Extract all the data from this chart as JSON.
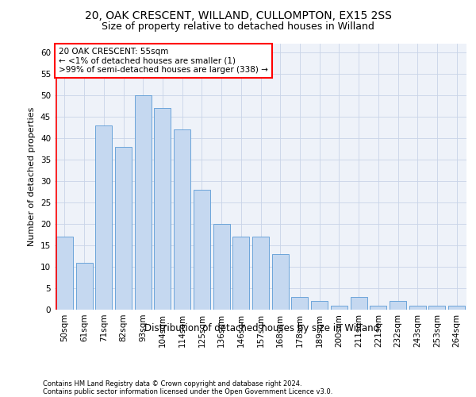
{
  "title1": "20, OAK CRESCENT, WILLAND, CULLOMPTON, EX15 2SS",
  "title2": "Size of property relative to detached houses in Willand",
  "xlabel": "Distribution of detached houses by size in Willand",
  "ylabel": "Number of detached properties",
  "categories": [
    "50sqm",
    "61sqm",
    "71sqm",
    "82sqm",
    "93sqm",
    "104sqm",
    "114sqm",
    "125sqm",
    "136sqm",
    "146sqm",
    "157sqm",
    "168sqm",
    "178sqm",
    "189sqm",
    "200sqm",
    "211sqm",
    "221sqm",
    "232sqm",
    "243sqm",
    "253sqm",
    "264sqm"
  ],
  "values": [
    17,
    11,
    43,
    38,
    50,
    47,
    42,
    28,
    20,
    17,
    17,
    13,
    3,
    2,
    1,
    3,
    1,
    2,
    1,
    1,
    1
  ],
  "bar_color": "#c5d8f0",
  "bar_edge_color": "#5b9bd5",
  "annotation_text": "20 OAK CRESCENT: 55sqm\n← <1% of detached houses are smaller (1)\n>99% of semi-detached houses are larger (338) →",
  "footer1": "Contains HM Land Registry data © Crown copyright and database right 2024.",
  "footer2": "Contains public sector information licensed under the Open Government Licence v3.0.",
  "ylim": [
    0,
    62
  ],
  "yticks": [
    0,
    5,
    10,
    15,
    20,
    25,
    30,
    35,
    40,
    45,
    50,
    55,
    60
  ],
  "bg_color": "#eef2f9",
  "grid_color": "#c8d4e8",
  "title1_fontsize": 10,
  "title2_fontsize": 9,
  "xlabel_fontsize": 8.5,
  "ylabel_fontsize": 8,
  "tick_fontsize": 7.5,
  "footer_fontsize": 6,
  "ann_fontsize": 7.5
}
